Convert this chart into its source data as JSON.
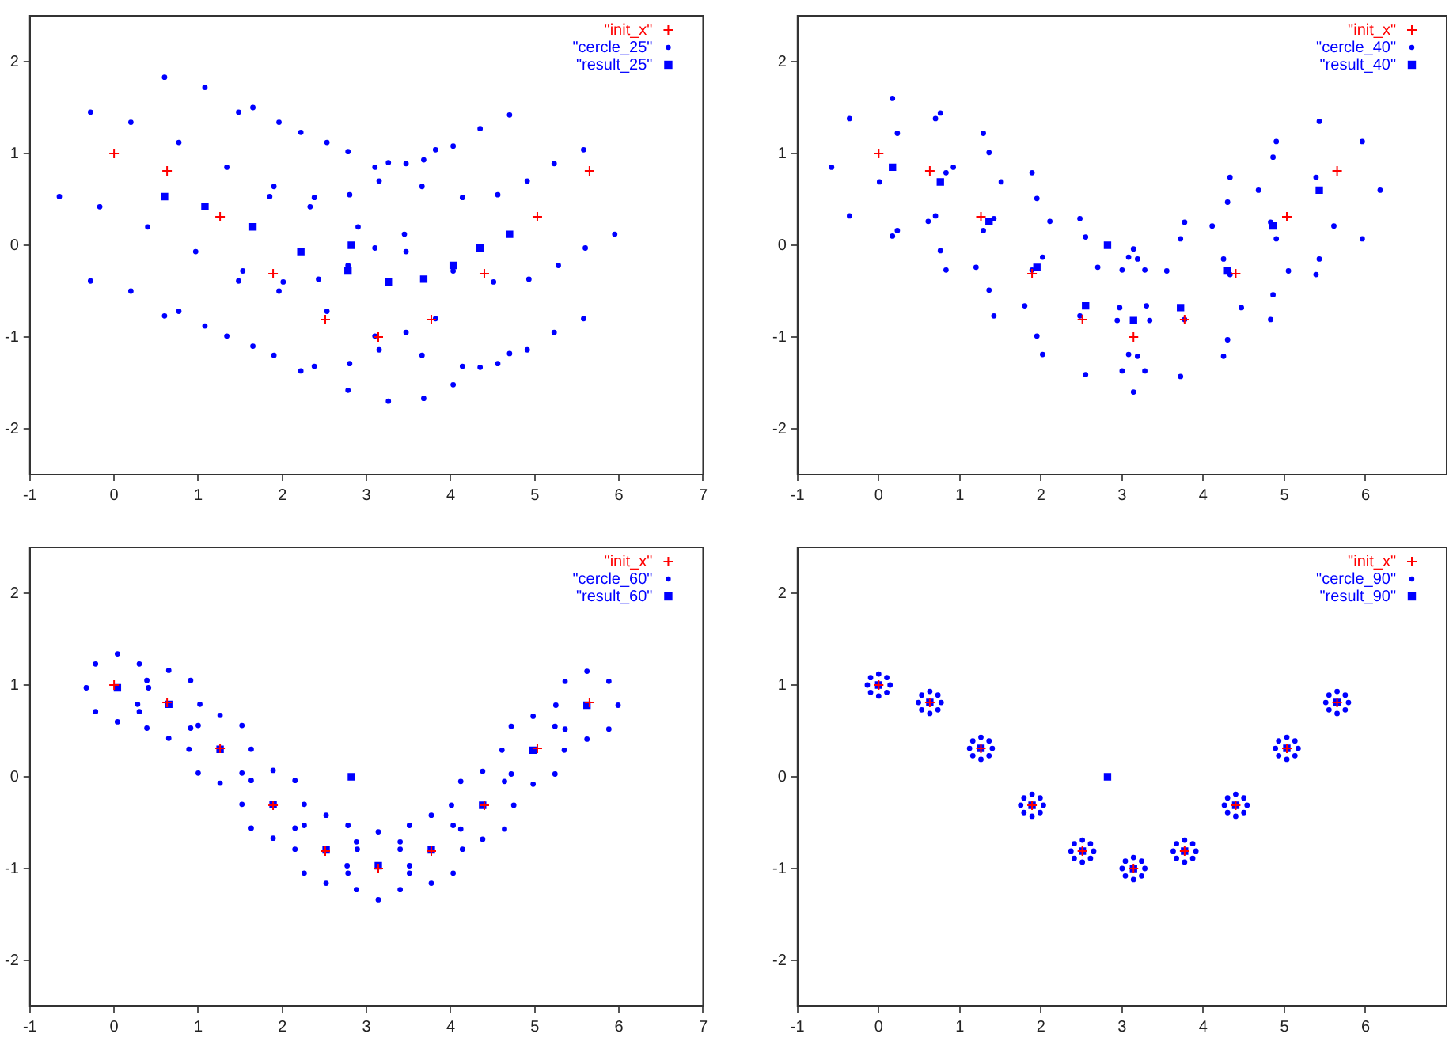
{
  "chart_data": [
    {
      "type": "scatter",
      "xlim": [
        -1,
        7
      ],
      "ylim": [
        -2.5,
        2.5
      ],
      "xticks": [
        -1,
        0,
        1,
        2,
        3,
        4,
        5,
        6,
        7
      ],
      "yticks": [
        -2,
        -1,
        0,
        1,
        2
      ],
      "legend": "top right",
      "series": [
        {
          "name": "\"init_x\"",
          "color": "#ff0000",
          "marker": "cross",
          "x": [
            0,
            0.63,
            1.26,
            1.89,
            2.51,
            3.14,
            3.77,
            4.4,
            5.03,
            5.65
          ],
          "values": [
            1,
            0.81,
            0.31,
            -0.31,
            -0.81,
            -1,
            -0.81,
            -0.31,
            0.31,
            0.81
          ]
        },
        {
          "name": "\"cercle_25\"",
          "color": "#0000ff",
          "marker": "circle",
          "x": [
            1.85,
            1.48,
            0.6,
            -0.28,
            -0.65,
            -0.28,
            0.6,
            1.48,
            2.33,
            1.96,
            1.08,
            0.2,
            -0.17,
            0.2,
            1.08,
            1.96,
            2.9,
            2.53,
            1.65,
            0.77,
            0.4,
            0.77,
            1.65,
            2.53,
            3.47,
            3.1,
            2.22,
            1.34,
            0.97,
            1.34,
            2.22,
            3.1,
            4.03,
            3.66,
            2.78,
            1.9,
            1.53,
            1.9,
            2.78,
            3.66,
            4.51,
            4.14,
            3.26,
            2.38,
            2.01,
            2.38,
            3.26,
            4.14,
            4.93,
            4.56,
            3.68,
            2.8,
            2.43,
            2.8,
            3.68,
            4.56,
            5.28,
            4.91,
            4.03,
            3.15,
            2.78,
            3.15,
            4.03,
            4.91,
            5.6,
            5.23,
            4.35,
            3.47,
            3.1,
            3.47,
            4.35,
            5.23,
            5.95,
            5.58,
            4.7,
            3.82,
            3.45,
            3.82,
            4.7,
            5.58
          ],
          "values": [
            0.53,
            1.45,
            1.83,
            1.45,
            0.53,
            -0.39,
            -0.77,
            -0.39,
            0.42,
            1.34,
            1.72,
            1.34,
            0.42,
            -0.5,
            -0.88,
            -0.5,
            0.2,
            1.12,
            1.5,
            1.12,
            0.2,
            -0.72,
            -1.1,
            -0.72,
            -0.07,
            0.85,
            1.23,
            0.85,
            -0.07,
            -0.99,
            -1.37,
            -0.99,
            -0.28,
            0.64,
            1.02,
            0.64,
            -0.28,
            -1.2,
            -1.58,
            -1.2,
            -0.4,
            0.52,
            0.9,
            0.52,
            -0.4,
            -1.32,
            -1.7,
            -1.32,
            -0.37,
            0.55,
            0.93,
            0.55,
            -0.37,
            -1.29,
            -1.67,
            -1.29,
            -0.22,
            0.7,
            1.08,
            0.7,
            -0.22,
            -1.14,
            -1.52,
            -1.14,
            -0.03,
            0.89,
            1.27,
            0.89,
            -0.03,
            -0.95,
            -1.33,
            -0.95,
            0.12,
            1.04,
            1.42,
            1.04,
            0.12,
            -0.8,
            -1.18,
            -0.8
          ]
        },
        {
          "name": "\"result_25\"",
          "color": "#0000ff",
          "marker": "square",
          "x": [
            0.6,
            1.08,
            1.65,
            2.22,
            2.82,
            2.78,
            3.26,
            3.68,
            4.03,
            4.35,
            4.7
          ],
          "values": [
            0.53,
            0.42,
            0.2,
            -0.07,
            0,
            -0.28,
            -0.4,
            -0.37,
            -0.22,
            -0.03,
            0.12
          ]
        }
      ]
    },
    {
      "type": "scatter",
      "xlim": [
        -1,
        7
      ],
      "ylim": [
        -2.5,
        2.5
      ],
      "xticks": [
        -1,
        0,
        1,
        2,
        3,
        4,
        5,
        6
      ],
      "yticks": [
        -2,
        -1,
        0,
        1,
        2
      ],
      "legend": "top right",
      "series": [
        {
          "name": "\"init_x\"",
          "color": "#ff0000",
          "marker": "cross",
          "x": [
            0,
            0.63,
            1.26,
            1.89,
            2.51,
            3.14,
            3.77,
            4.4,
            5.03,
            5.65
          ],
          "values": [
            1,
            0.81,
            0.31,
            -0.31,
            -0.81,
            -1,
            -0.81,
            -0.31,
            0.31,
            0.81
          ]
        },
        {
          "name": "\"cercle_40\"",
          "color": "#0000ff",
          "marker": "circle",
          "x": [
            0.92,
            0.7,
            0.17,
            -0.36,
            -0.58,
            -0.36,
            0.17,
            0.7,
            1.51,
            1.29,
            0.76,
            0.23,
            0.01,
            0.23,
            0.76,
            1.29,
            2.11,
            1.89,
            1.36,
            0.83,
            0.61,
            0.83,
            1.36,
            1.89,
            2.7,
            2.48,
            1.95,
            1.42,
            1.2,
            1.42,
            1.95,
            2.48,
            3.3,
            3.08,
            2.55,
            2.02,
            1.8,
            2.02,
            2.55,
            3.08,
            3.34,
            3.28,
            3.14,
            3,
            2.94,
            3,
            3.14,
            3.28,
            4.47,
            4.25,
            3.72,
            3.19,
            2.97,
            3.19,
            3.72,
            4.25,
            5.05,
            4.83,
            4.3,
            3.77,
            3.55,
            3.77,
            4.3,
            4.83,
            5.61,
            5.39,
            4.86,
            4.33,
            4.11,
            4.33,
            4.86,
            5.39,
            6.18,
            5.96,
            5.43,
            4.9,
            4.68,
            4.9,
            5.43,
            5.96
          ],
          "values": [
            0.85,
            1.38,
            1.6,
            1.38,
            0.85,
            0.32,
            0.1,
            0.32,
            0.69,
            1.22,
            1.44,
            1.22,
            0.69,
            0.16,
            -0.06,
            0.16,
            0.26,
            0.79,
            1.01,
            0.79,
            0.26,
            -0.27,
            -0.49,
            -0.27,
            -0.24,
            0.29,
            0.51,
            0.29,
            -0.24,
            -0.77,
            -0.99,
            -0.77,
            -0.66,
            -0.13,
            0.09,
            -0.13,
            -0.66,
            -1.19,
            -1.41,
            -1.19,
            -0.82,
            -0.27,
            -0.04,
            -0.27,
            -0.82,
            -1.37,
            -1.6,
            -1.37,
            -0.68,
            -0.15,
            0.07,
            -0.15,
            -0.68,
            -1.21,
            -1.43,
            -1.21,
            -0.28,
            0.25,
            0.47,
            0.25,
            -0.28,
            -0.81,
            -1.03,
            -0.81,
            0.21,
            0.74,
            0.96,
            0.74,
            0.21,
            -0.32,
            -0.54,
            -0.32,
            0.6,
            1.13,
            1.35,
            1.13,
            0.6,
            0.07,
            -0.15,
            0.07
          ]
        },
        {
          "name": "\"result_40\"",
          "color": "#0000ff",
          "marker": "square",
          "x": [
            0.17,
            0.76,
            1.36,
            1.95,
            2.82,
            2.55,
            3.14,
            3.72,
            4.3,
            4.86,
            5.43
          ],
          "values": [
            0.85,
            0.69,
            0.26,
            -0.24,
            0,
            -0.66,
            -0.82,
            -0.68,
            -0.28,
            0.21,
            0.6
          ]
        }
      ]
    },
    {
      "type": "scatter",
      "xlim": [
        -1,
        7
      ],
      "ylim": [
        -2.5,
        2.5
      ],
      "xticks": [
        -1,
        0,
        1,
        2,
        3,
        4,
        5,
        6,
        7
      ],
      "yticks": [
        -2,
        -1,
        0,
        1,
        2
      ],
      "legend": "top right",
      "series": [
        {
          "name": "\"init_x\"",
          "color": "#ff0000",
          "marker": "cross",
          "x": [
            0,
            0.63,
            1.26,
            1.89,
            2.51,
            3.14,
            3.77,
            4.4,
            5.03,
            5.65
          ],
          "values": [
            1,
            0.81,
            0.31,
            -0.31,
            -0.81,
            -1,
            -0.81,
            -0.31,
            0.31,
            0.81
          ]
        },
        {
          "name": "\"cercle_60\"",
          "color": "#0000ff",
          "marker": "circle",
          "x": [
            0.41,
            0.3,
            0.04,
            -0.22,
            -0.33,
            -0.22,
            0.04,
            0.3,
            1.02,
            0.91,
            0.65,
            0.39,
            0.28,
            0.39,
            0.65,
            0.91,
            1.63,
            1.52,
            1.26,
            1,
            0.89,
            1,
            1.26,
            1.52,
            2.26,
            2.15,
            1.89,
            1.63,
            1.52,
            1.63,
            1.89,
            2.15,
            2.89,
            2.78,
            2.52,
            2.26,
            2.15,
            2.26,
            2.52,
            2.78,
            3.51,
            3.4,
            3.14,
            2.88,
            2.77,
            2.88,
            3.14,
            3.4,
            4.14,
            4.03,
            3.77,
            3.51,
            3.4,
            3.51,
            3.77,
            4.03,
            4.75,
            4.64,
            4.38,
            4.12,
            4.01,
            4.12,
            4.38,
            4.64,
            5.35,
            5.24,
            4.98,
            4.72,
            4.61,
            4.72,
            4.98,
            5.24,
            5.99,
            5.88,
            5.62,
            5.36,
            5.25,
            5.36,
            5.62,
            5.88
          ],
          "values": [
            0.97,
            1.23,
            1.34,
            1.23,
            0.97,
            0.71,
            0.6,
            0.71,
            0.79,
            1.05,
            1.16,
            1.05,
            0.79,
            0.53,
            0.42,
            0.53,
            0.3,
            0.56,
            0.67,
            0.56,
            0.3,
            0.04,
            -0.07,
            0.04,
            -0.3,
            -0.04,
            0.07,
            -0.04,
            -0.3,
            -0.56,
            -0.67,
            -0.56,
            -0.79,
            -0.53,
            -0.42,
            -0.53,
            -0.79,
            -1.05,
            -1.16,
            -1.05,
            -0.97,
            -0.71,
            -0.6,
            -0.71,
            -0.97,
            -1.23,
            -1.34,
            -1.23,
            -0.79,
            -0.53,
            -0.42,
            -0.53,
            -0.79,
            -1.05,
            -1.16,
            -1.05,
            -0.31,
            -0.05,
            0.06,
            -0.05,
            -0.31,
            -0.57,
            -0.68,
            -0.57,
            0.29,
            0.55,
            0.66,
            0.55,
            0.29,
            0.03,
            -0.08,
            0.03,
            0.78,
            1.04,
            1.15,
            1.04,
            0.78,
            0.52,
            0.41,
            0.52
          ]
        },
        {
          "name": "\"result_60\"",
          "color": "#0000ff",
          "marker": "square",
          "x": [
            0.04,
            0.65,
            1.26,
            1.89,
            2.82,
            2.52,
            3.14,
            3.77,
            4.38,
            4.98,
            5.62
          ],
          "values": [
            0.97,
            0.79,
            0.3,
            -0.3,
            0,
            -0.79,
            -0.97,
            -0.79,
            -0.31,
            0.29,
            0.78
          ]
        }
      ]
    },
    {
      "type": "scatter",
      "xlim": [
        -1,
        7
      ],
      "ylim": [
        -2.5,
        2.5
      ],
      "xticks": [
        -1,
        0,
        1,
        2,
        3,
        4,
        5,
        6
      ],
      "yticks": [
        -2,
        -1,
        0,
        1,
        2
      ],
      "legend": "top right",
      "series": [
        {
          "name": "\"init_x\"",
          "color": "#ff0000",
          "marker": "cross",
          "x": [
            0,
            0.63,
            1.26,
            1.89,
            2.51,
            3.14,
            3.77,
            4.4,
            5.03,
            5.65
          ],
          "values": [
            1,
            0.81,
            0.31,
            -0.31,
            -0.81,
            -1,
            -0.81,
            -0.31,
            0.31,
            0.81
          ]
        },
        {
          "name": "\"cercle_90\"",
          "color": "#0000ff",
          "marker": "circle",
          "x": [
            0.14,
            0.1,
            0,
            -0.1,
            -0.14,
            -0.1,
            0,
            0.1,
            0.77,
            0.73,
            0.63,
            0.53,
            0.49,
            0.53,
            0.63,
            0.73,
            1.4,
            1.36,
            1.26,
            1.16,
            1.12,
            1.16,
            1.26,
            1.36,
            2.03,
            1.99,
            1.89,
            1.79,
            1.75,
            1.79,
            1.89,
            1.99,
            2.65,
            2.61,
            2.51,
            2.41,
            2.37,
            2.41,
            2.51,
            2.61,
            3.28,
            3.24,
            3.14,
            3.04,
            3,
            3.04,
            3.14,
            3.24,
            3.91,
            3.87,
            3.77,
            3.67,
            3.63,
            3.67,
            3.77,
            3.87,
            4.54,
            4.5,
            4.4,
            4.3,
            4.26,
            4.3,
            4.4,
            4.5,
            5.17,
            5.13,
            5.03,
            4.93,
            4.89,
            4.93,
            5.03,
            5.13,
            5.79,
            5.75,
            5.65,
            5.55,
            5.51,
            5.55,
            5.65,
            5.75
          ],
          "values": [
            1,
            1.08,
            1.12,
            1.08,
            1,
            0.92,
            0.88,
            0.92,
            0.81,
            0.89,
            0.93,
            0.89,
            0.81,
            0.73,
            0.69,
            0.73,
            0.31,
            0.39,
            0.43,
            0.39,
            0.31,
            0.23,
            0.19,
            0.23,
            -0.31,
            -0.23,
            -0.19,
            -0.23,
            -0.31,
            -0.39,
            -0.43,
            -0.39,
            -0.81,
            -0.73,
            -0.69,
            -0.73,
            -0.81,
            -0.89,
            -0.93,
            -0.89,
            -1,
            -0.92,
            -0.88,
            -0.92,
            -1,
            -1.08,
            -1.12,
            -1.08,
            -0.81,
            -0.73,
            -0.69,
            -0.73,
            -0.81,
            -0.89,
            -0.93,
            -0.89,
            -0.31,
            -0.23,
            -0.19,
            -0.23,
            -0.31,
            -0.39,
            -0.43,
            -0.39,
            0.31,
            0.39,
            0.43,
            0.39,
            0.31,
            0.23,
            0.19,
            0.23,
            0.81,
            0.89,
            0.93,
            0.89,
            0.81,
            0.73,
            0.69,
            0.73
          ]
        },
        {
          "name": "\"result_90\"",
          "color": "#0000ff",
          "marker": "square",
          "x": [
            0,
            0.63,
            1.26,
            1.89,
            2.82,
            2.51,
            3.14,
            3.77,
            4.4,
            5.03,
            5.65
          ],
          "values": [
            1,
            0.81,
            0.31,
            -0.31,
            0,
            -0.81,
            -1,
            -0.81,
            -0.31,
            0.31,
            0.81
          ]
        }
      ]
    }
  ]
}
